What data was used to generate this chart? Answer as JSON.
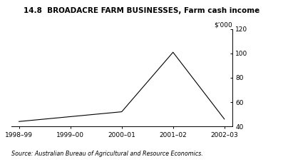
{
  "title_bold": "14.8  BROADACRE FARM BUSINESSES,",
  "title_normal": " Farm cash income",
  "ylabel": "$’000",
  "source": "Source: Australian Bureau of Agricultural and Resource Economics.",
  "x_labels": [
    "1998–99",
    "1999–00",
    "2000–01",
    "2001–02",
    "2002–03"
  ],
  "x_values": [
    0,
    1,
    2,
    3,
    4
  ],
  "y_values": [
    44,
    48,
    52,
    101,
    46
  ],
  "ylim": [
    40,
    120
  ],
  "yticks": [
    40,
    60,
    80,
    100,
    120
  ],
  "line_color": "#000000",
  "bg_color": "#ffffff",
  "title_fontsize": 7.5,
  "axis_fontsize": 6.5,
  "source_fontsize": 5.8
}
